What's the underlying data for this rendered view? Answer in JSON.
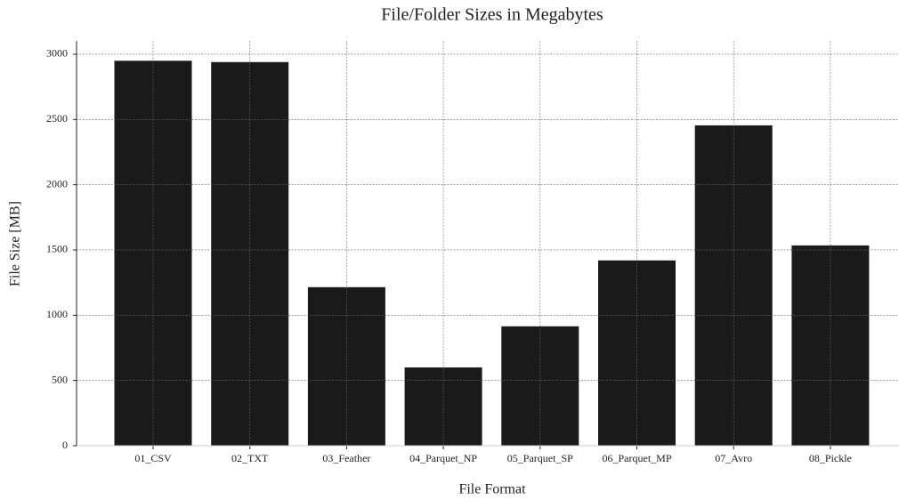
{
  "chart_data": {
    "type": "bar",
    "title": "File/Folder Sizes in Megabytes",
    "x_label": "File Format",
    "y_label": "File Size [MB]",
    "categories": [
      "01_CSV",
      "02_TXT",
      "03_Feather",
      "04_Parquet_NP",
      "05_Parquet_SP",
      "06_Parquet_MP",
      "07_Avro",
      "08_Pickle"
    ],
    "values": [
      2950,
      2940,
      1215,
      600,
      915,
      1420,
      2455,
      1535
    ],
    "color": "#1a1a1a",
    "ylim": [
      0,
      3100
    ],
    "yticks": [
      0,
      500,
      1000,
      1500,
      2000,
      2500,
      3000
    ],
    "grid": true
  }
}
